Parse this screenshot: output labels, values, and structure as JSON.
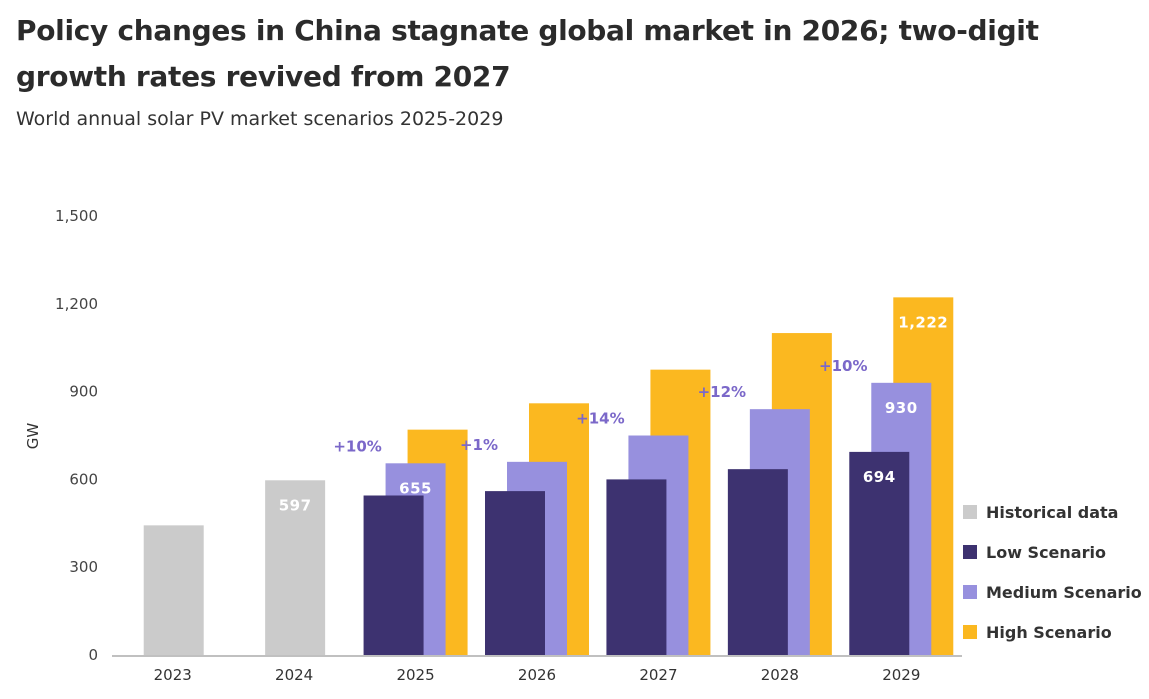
{
  "title": "Policy changes in China stagnate global market in 2026; two-digit growth rates revived from 2027",
  "subtitle": "World annual solar PV market scenarios 2025-2029",
  "chart_data": {
    "type": "bar",
    "ylabel": "GW",
    "ylim": [
      0,
      1500
    ],
    "yticks": [
      "0",
      "300",
      "600",
      "900",
      "1,200",
      "1,500"
    ],
    "yticks_values": [
      0,
      300,
      600,
      900,
      1200,
      1500
    ],
    "categories": [
      "2023",
      "2024",
      "2025",
      "2026",
      "2027",
      "2028",
      "2029"
    ],
    "series": [
      {
        "name": "Historical data",
        "color": "#cbcbcb",
        "values": [
          443,
          597,
          null,
          null,
          null,
          null,
          null
        ]
      },
      {
        "name": "Low Scenario",
        "color": "#3d3270",
        "values": [
          null,
          null,
          545,
          560,
          600,
          635,
          694
        ]
      },
      {
        "name": "Medium Scenario",
        "color": "#9790de",
        "values": [
          null,
          null,
          655,
          660,
          750,
          840,
          930
        ]
      },
      {
        "name": "High Scenario",
        "color": "#fbb820",
        "values": [
          null,
          null,
          770,
          860,
          975,
          1100,
          1222
        ]
      }
    ],
    "data_labels": [
      {
        "category": "2024",
        "series": "Historical data",
        "text": "597"
      },
      {
        "category": "2025",
        "series": "Medium Scenario",
        "text": "655"
      },
      {
        "category": "2029",
        "series": "Low Scenario",
        "text": "694"
      },
      {
        "category": "2029",
        "series": "Medium Scenario",
        "text": "930"
      },
      {
        "category": "2029",
        "series": "High Scenario",
        "text": "1,222"
      }
    ],
    "growth_labels": [
      {
        "category": "2025",
        "text": "+10%"
      },
      {
        "category": "2026",
        "text": "+1%"
      },
      {
        "category": "2027",
        "text": "+14%"
      },
      {
        "category": "2028",
        "text": "+12%"
      },
      {
        "category": "2029",
        "text": "+10%"
      }
    ],
    "legend_position": "right",
    "grid": false
  }
}
